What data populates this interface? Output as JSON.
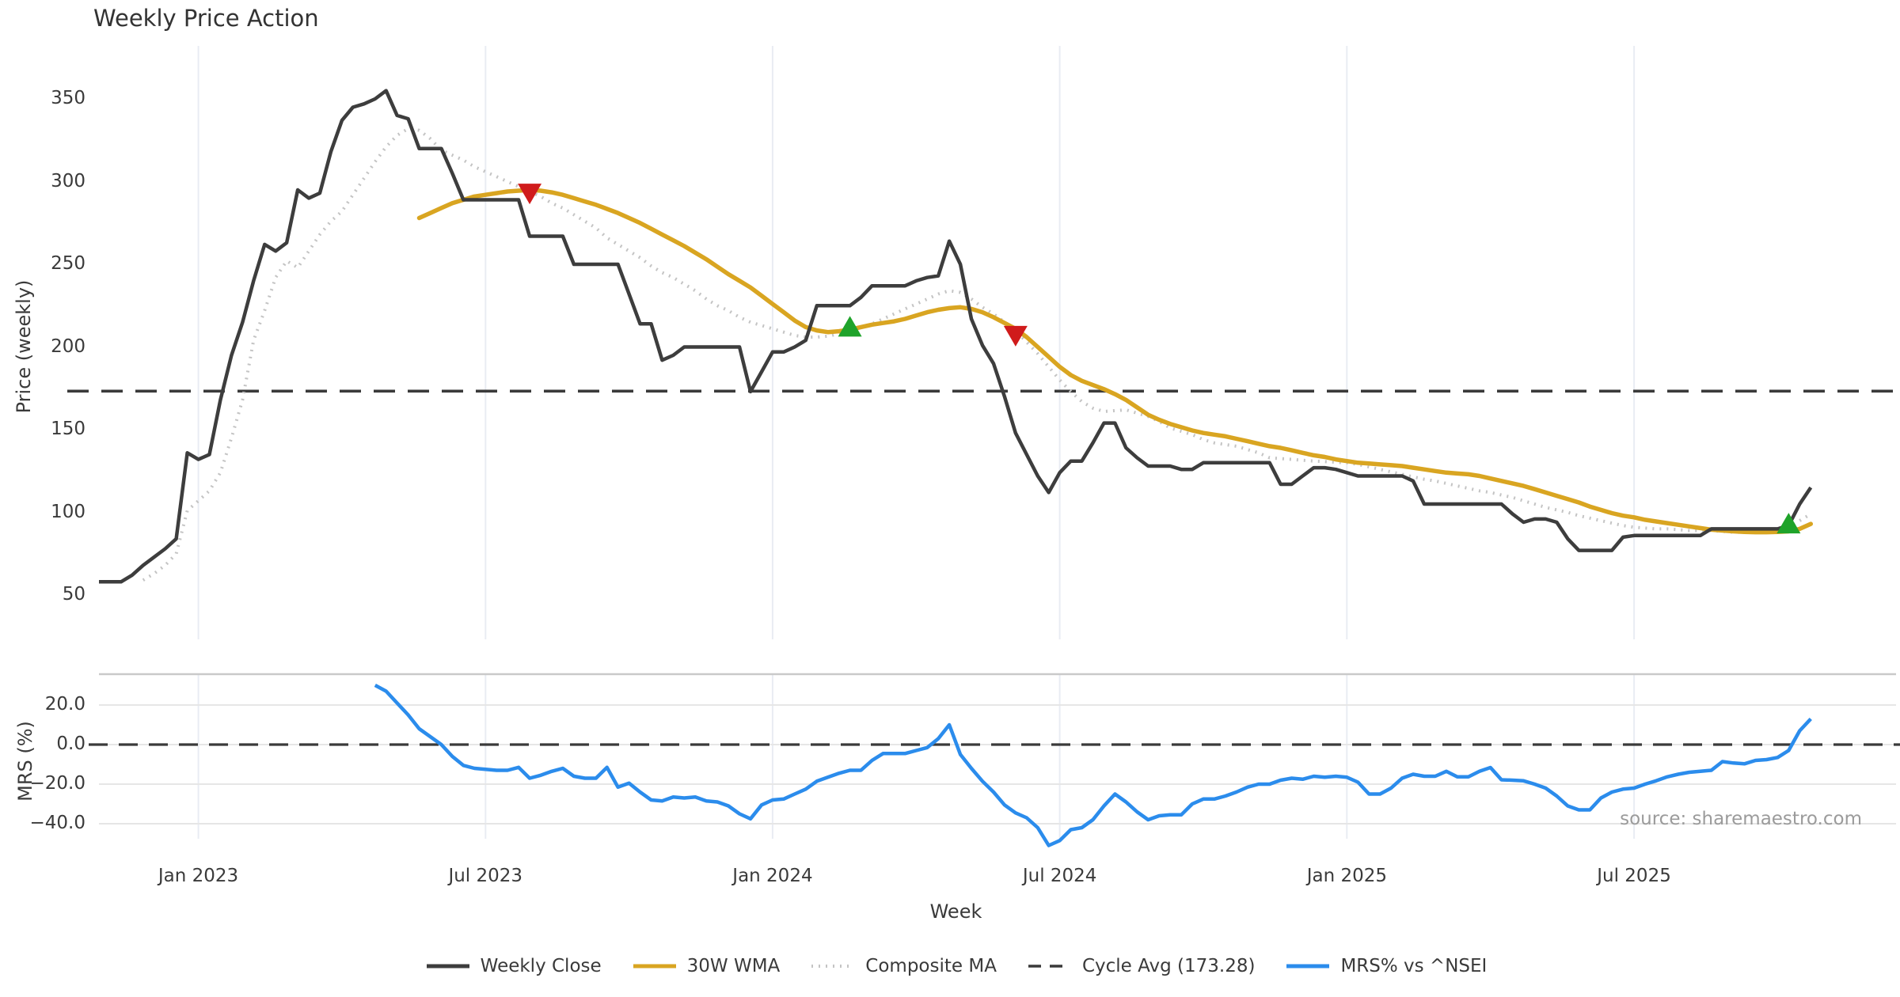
{
  "title": "Weekly Price Action",
  "source_note": "source: sharemaestro.com",
  "colors": {
    "close": "#3d3d3d",
    "wma": "#d9a521",
    "composite": "#c4c4c4",
    "cycle": "#3a3a3a",
    "mrs": "#2b8cec",
    "buy_marker": "#1fa32a",
    "sell_marker": "#d01b1b",
    "grid_vertical": "#e9ecf3",
    "grid_horizontal": "#e6e6e6",
    "panel_border": "#c9c9c9",
    "text": "#3a3a3a",
    "source_text": "#9b9b9b"
  },
  "legend": [
    {
      "label": "Weekly Close",
      "style": "solid",
      "color": "#3d3d3d"
    },
    {
      "label": "30W WMA",
      "style": "solid",
      "color": "#d9a521"
    },
    {
      "label": "Composite MA",
      "style": "dotted",
      "color": "#c4c4c4"
    },
    {
      "label": "Cycle Avg (173.28)",
      "style": "dashed",
      "color": "#3a3a3a"
    },
    {
      "label": "MRS% vs ^NSEI",
      "style": "solid",
      "color": "#2b8cec"
    }
  ],
  "chart_data": {
    "type": "line",
    "title": "Weekly Price Action",
    "xlabel": "Week",
    "x_unit": "week_index",
    "x_tick_weeks": [
      9,
      35,
      61,
      87,
      113,
      139
    ],
    "x_tick_labels": [
      "Jan 2023",
      "Jul 2023",
      "Jan 2024",
      "Jul 2024",
      "Jan 2025",
      "Jul 2025"
    ],
    "panels": [
      {
        "name": "price",
        "ylabel": "Price (weekly)",
        "yticks": [
          350,
          300,
          250,
          200,
          150,
          100,
          50
        ],
        "ylim": [
          22,
          382
        ],
        "grid": "vertical-only",
        "cycle_avg": 173.28,
        "series": [
          {
            "name": "Weekly Close",
            "style": "solid",
            "start_week": 0,
            "values": [
              58,
              58,
              58,
              62,
              68,
              73,
              78,
              84,
              136,
              132,
              135,
              168,
              195,
              215,
              240,
              262,
              258,
              263,
              295,
              290,
              293,
              318,
              337,
              345,
              347,
              350,
              355,
              340,
              338,
              320,
              320,
              320,
              305,
              289,
              289,
              289,
              289,
              289,
              289,
              267,
              267,
              267,
              267,
              250,
              250,
              250,
              250,
              250,
              232,
              214,
              214,
              192,
              195,
              200,
              200,
              200,
              200,
              200,
              200,
              173,
              185,
              197,
              197,
              200,
              204,
              225,
              225,
              225,
              225,
              230,
              237,
              237,
              237,
              237,
              240,
              242,
              243,
              264,
              250,
              217,
              201,
              190,
              170,
              148,
              135,
              122,
              112,
              124,
              131,
              131,
              142,
              154,
              154,
              139,
              133,
              128,
              128,
              128,
              126,
              126,
              130,
              130,
              130,
              130,
              130,
              130,
              130,
              117,
              117,
              122,
              127,
              127,
              126,
              124,
              122,
              122,
              122,
              122,
              122,
              119,
              105,
              105,
              105,
              105,
              105,
              105,
              105,
              105,
              99,
              94,
              96,
              96,
              94,
              84,
              77,
              77,
              77,
              77,
              85,
              86,
              86,
              86,
              86,
              86,
              86,
              86,
              90,
              90,
              90,
              90,
              90,
              90,
              90,
              92,
              105,
              115
            ]
          },
          {
            "name": "30W WMA",
            "style": "solid",
            "start_week": 29,
            "values": [
              278,
              281,
              284,
              287,
              289,
              291,
              292,
              293,
              294,
              294.5,
              295,
              294.5,
              293.5,
              292,
              290,
              288,
              286,
              283.5,
              281,
              278,
              275,
              271.5,
              268,
              264.5,
              261,
              257,
              253,
              248.5,
              244,
              240,
              236,
              231,
              226,
              221,
              216,
              212,
              210,
              209,
              209.5,
              210.5,
              212,
              213.5,
              214.5,
              215.5,
              217,
              219,
              221,
              222.5,
              223.5,
              224,
              223,
              221,
              218,
              214.5,
              211,
              206,
              200,
              194,
              188,
              183,
              179.5,
              177,
              174.5,
              171.5,
              168,
              163.5,
              159,
              156,
              153.5,
              151.5,
              149.5,
              148,
              147,
              146,
              144.5,
              143,
              141.5,
              140,
              139,
              137.5,
              136,
              134.5,
              133.5,
              132,
              131,
              130,
              129.5,
              129,
              128.5,
              128,
              127,
              126,
              125,
              124,
              123.5,
              123,
              122,
              120.5,
              119,
              117.5,
              116,
              114,
              112,
              110,
              108,
              106,
              103.5,
              101.5,
              99.5,
              98,
              97,
              95.5,
              94.5,
              93.5,
              92.5,
              91.5,
              90.5,
              89.5,
              89,
              88.5,
              88.2,
              88,
              88,
              88.2,
              88.5,
              90,
              93
            ]
          },
          {
            "name": "Composite MA",
            "style": "dotted",
            "start_week": 4,
            "values": [
              59,
              63,
              68,
              75,
              101,
              107,
              113,
              124,
              145,
              168,
              204,
              222,
              242,
              252,
              248,
              258,
              268,
              276,
              282,
              292,
              302,
              312,
              321,
              328,
              332,
              331,
              326,
              319,
              316,
              313,
              309,
              306,
              303,
              300,
              297,
              294,
              291,
              287,
              284,
              280,
              276,
              272,
              266,
              262,
              258,
              254,
              249,
              245,
              242,
              238,
              234,
              229,
              225,
              222,
              218,
              215,
              213,
              211,
              209,
              207,
              206,
              206,
              206.5,
              208,
              210,
              212,
              214,
              217,
              220,
              223,
              226,
              229,
              232,
              234,
              233,
              229,
              224,
              220,
              215,
              210,
              203,
              196,
              188,
              180,
              173,
              167,
              163,
              161,
              161.5,
              162,
              160,
              158,
              155,
              151,
              149,
              147,
              144,
              142,
              141,
              140,
              138,
              136,
              133,
              132.5,
              132,
              131.5,
              131,
              130.7,
              130.3,
              130,
              129,
              127.5,
              126,
              124.5,
              123,
              121.5,
              120,
              119,
              117.5,
              116,
              114.5,
              113,
              112,
              110.5,
              109,
              107,
              105,
              103,
              101.5,
              100,
              98,
              96.5,
              95,
              93.5,
              92,
              91,
              90.5,
              90,
              90,
              89.5,
              89,
              89,
              89,
              88.5,
              88,
              88,
              88.2,
              88.5,
              89,
              91,
              95,
              99
            ]
          }
        ],
        "markers": {
          "sell": [
            {
              "week": 39,
              "value": 293
            },
            {
              "week": 83,
              "value": 207
            }
          ],
          "buy": [
            {
              "week": 68,
              "value": 212
            },
            {
              "week": 153,
              "value": 93
            }
          ]
        }
      },
      {
        "name": "mrs",
        "ylabel": "MRS (%)",
        "ytick_labels": [
          "20.0",
          "0.0",
          "−20.0",
          "−40.0"
        ],
        "yticks": [
          20,
          0,
          -20,
          -40
        ],
        "ylim": [
          -55,
          36
        ],
        "zero_line": "dashed",
        "series": [
          {
            "name": "MRS% vs ^NSEI",
            "style": "solid",
            "start_week": 25,
            "values": [
              30,
              27,
              21,
              15,
              8,
              4,
              0,
              -6,
              -10.5,
              -12,
              -12.5,
              -13,
              -13,
              -11.5,
              -17,
              -15.5,
              -13.5,
              -12,
              -16,
              -17,
              -17,
              -11.5,
              -21.5,
              -19.5,
              -24,
              -28,
              -28.5,
              -26.5,
              -27,
              -26.5,
              -28.5,
              -29,
              -31,
              -35,
              -37.5,
              -30.5,
              -28,
              -27.5,
              -25,
              -22.5,
              -18.5,
              -16.5,
              -14.5,
              -13,
              -13,
              -8,
              -4.5,
              -4.5,
              -4.5,
              -3,
              -1.5,
              3,
              10,
              -5,
              -12,
              -18.5,
              -24,
              -30.5,
              -34.5,
              -37,
              -42,
              -51,
              -48.5,
              -43,
              -42,
              -38,
              -31,
              -25,
              -29,
              -34,
              -38,
              -36,
              -35.5,
              -35.5,
              -30,
              -27.5,
              -27.5,
              -26,
              -24,
              -21.5,
              -20,
              -20,
              -18,
              -17,
              -17.5,
              -16,
              -16.5,
              -16,
              -16.5,
              -19,
              -25,
              -25,
              -22,
              -17,
              -15,
              -16,
              -16,
              -13.5,
              -16.3,
              -16.3,
              -13.5,
              -11.6,
              -17.8,
              -18,
              -18.3,
              -20,
              -22,
              -26,
              -31,
              -33,
              -33,
              -27,
              -24,
              -22.5,
              -22,
              -20,
              -18.3,
              -16.3,
              -15,
              -14,
              -13.5,
              -13,
              -8.6,
              -9.3,
              -9.7,
              -8,
              -7.6,
              -6.5,
              -3,
              7,
              13
            ]
          }
        ]
      }
    ]
  }
}
